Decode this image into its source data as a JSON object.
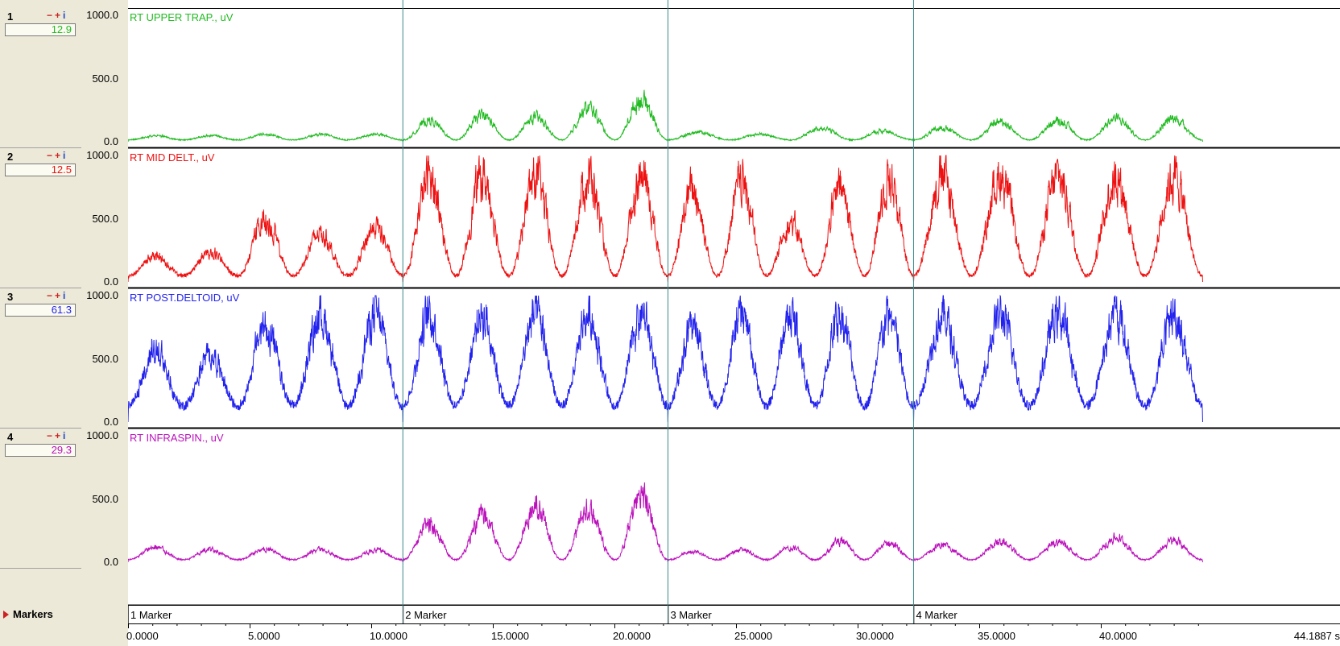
{
  "channels": [
    {
      "number": "1",
      "value": "12.9",
      "title": "RT UPPER TRAP., uV",
      "color": "#22bb22",
      "scale": [
        "1000.0",
        "500.0",
        "0.0"
      ]
    },
    {
      "number": "2",
      "value": "12.5",
      "title": "RT MID DELT., uV",
      "color": "#ee1111",
      "scale": [
        "1000.0",
        "500.0",
        "0.0"
      ]
    },
    {
      "number": "3",
      "value": "61.3",
      "title": "RT POST.DELTOID, uV",
      "color": "#2222ee",
      "scale": [
        "1000.0",
        "500.0",
        "0.0"
      ]
    },
    {
      "number": "4",
      "value": "29.3",
      "title": "RT INFRASPIN., uV",
      "color": "#bb11bb",
      "scale": [
        "1000.0",
        "500.0",
        "0.0"
      ]
    }
  ],
  "channel_buttons": {
    "remove": "−",
    "add": "+",
    "info": "i"
  },
  "markers": {
    "label": "Markers",
    "items": [
      {
        "label": "1 Marker",
        "time": 0.0
      },
      {
        "label": "2 Marker",
        "time": 11.3
      },
      {
        "label": "3 Marker",
        "time": 22.2
      },
      {
        "label": "4 Marker",
        "time": 32.3
      }
    ]
  },
  "chart_data": {
    "type": "line",
    "xlim": [
      0,
      44.1887
    ],
    "ylim": [
      0,
      1000
    ],
    "x_ticks": [
      "0.0000",
      "5.0000",
      "10.0000",
      "15.0000",
      "20.0000",
      "25.0000",
      "30.0000",
      "35.0000",
      "40.0000",
      "44.1887 s"
    ],
    "x_tick_values": [
      0,
      5,
      10,
      15,
      20,
      25,
      30,
      35,
      40,
      44.1887
    ],
    "segments": [
      [
        0,
        11.3
      ],
      [
        11.3,
        22.2
      ],
      [
        22.2,
        32.3
      ],
      [
        32.3,
        44.1887
      ]
    ],
    "series": [
      {
        "name": "RT UPPER TRAP., uV",
        "baseline": 15,
        "segment_peaks": [
          [
            55,
            55,
            70,
            70,
            70
          ],
          [
            200,
            250,
            230,
            320,
            400
          ],
          [
            90,
            70,
            130,
            100
          ],
          [
            130,
            190,
            200,
            220,
            220
          ]
        ]
      },
      {
        "name": "RT MID DELT., uV",
        "baseline": 50,
        "segment_peaks": [
          [
            240,
            280,
            600,
            460,
            520
          ],
          [
            1000,
            1000,
            1000,
            1000,
            1000
          ],
          [
            880,
            950,
            560,
            880,
            1000
          ],
          [
            1000,
            1000,
            1000,
            1000,
            1000
          ]
        ]
      },
      {
        "name": "RT POST.DELTOID, uV",
        "baseline": 130,
        "segment_peaks": [
          [
            680,
            620,
            900,
            1000,
            1000
          ],
          [
            1000,
            1000,
            1000,
            1000,
            1000
          ],
          [
            900,
            1000,
            1000,
            1000,
            1000
          ],
          [
            1000,
            1000,
            1000,
            1000,
            1000
          ]
        ]
      },
      {
        "name": "RT INFRASPIN., uV",
        "baseline": 20,
        "segment_peaks": [
          [
            140,
            120,
            120,
            120,
            110
          ],
          [
            360,
            440,
            530,
            500,
            640
          ],
          [
            100,
            120,
            140,
            200,
            180
          ],
          [
            160,
            190,
            190,
            230,
            200
          ]
        ]
      }
    ]
  }
}
